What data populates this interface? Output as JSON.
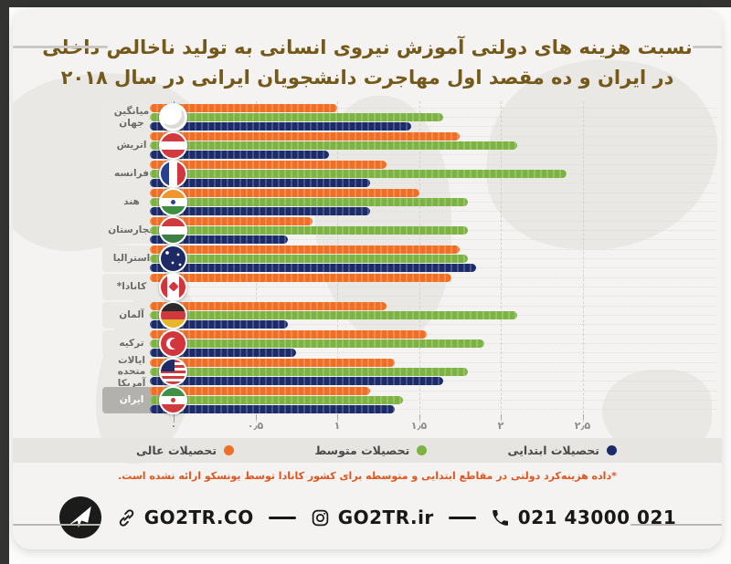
{
  "title": {
    "line1": "نسبت هزینه های دولتی آموزش نیروی انسانی به تولید ناخالص داخلی",
    "line2": "در ایران و ده مقصد اول مهاجرت دانشجویان ایرانی در سال ۲۰۱۸",
    "color": "#75591a"
  },
  "chart_data": {
    "type": "bar",
    "orientation": "horizontal",
    "xlim": [
      0,
      2.5
    ],
    "grid": "dashed-vertical",
    "legend_position": "bottom",
    "x_ticks": {
      "labels": [
        "۰",
        "۰٫۵",
        "۱",
        "۱٫۵",
        "۲",
        "۲٫۵"
      ],
      "values": [
        0,
        0.5,
        1,
        1.5,
        2,
        2.5
      ]
    },
    "series_meta": [
      {
        "key": "higher",
        "label": "تحصیلات عالی",
        "color": "#f06f24"
      },
      {
        "key": "secondary",
        "label": "تحصیلات متوسط",
        "color": "#7cb342"
      },
      {
        "key": "primary",
        "label": "تحصیلات ابتدایی",
        "color": "#1c2b6a"
      }
    ],
    "bar_order": [
      "higher",
      "secondary",
      "primary"
    ],
    "legend_order": [
      "primary",
      "secondary",
      "higher"
    ],
    "categories": [
      {
        "key": "world-average",
        "label": "میانگین جهان",
        "highlight": false,
        "values": {
          "higher": 1.0,
          "secondary": 1.65,
          "primary": 1.45
        }
      },
      {
        "key": "austria",
        "label": "اتریش",
        "highlight": false,
        "values": {
          "higher": 1.75,
          "secondary": 2.1,
          "primary": 0.95
        }
      },
      {
        "key": "france",
        "label": "فرانسه",
        "highlight": false,
        "values": {
          "higher": 1.3,
          "secondary": 2.4,
          "primary": 1.2
        }
      },
      {
        "key": "india",
        "label": "هند",
        "highlight": false,
        "values": {
          "higher": 1.5,
          "secondary": 1.8,
          "primary": 1.2
        }
      },
      {
        "key": "hungary",
        "label": "مجارستان",
        "highlight": false,
        "values": {
          "higher": 0.85,
          "secondary": 1.8,
          "primary": 0.7
        }
      },
      {
        "key": "australia",
        "label": "استرالیا",
        "highlight": false,
        "values": {
          "higher": 1.75,
          "secondary": 1.8,
          "primary": 1.85
        }
      },
      {
        "key": "canada",
        "label": "کانادا*",
        "highlight": false,
        "values": {
          "higher": 1.7,
          "secondary": null,
          "primary": null
        }
      },
      {
        "key": "germany",
        "label": "آلمان",
        "highlight": false,
        "values": {
          "higher": 1.3,
          "secondary": 2.1,
          "primary": 0.7
        }
      },
      {
        "key": "turkey",
        "label": "ترکیه",
        "highlight": false,
        "values": {
          "higher": 1.55,
          "secondary": 1.9,
          "primary": 0.75
        }
      },
      {
        "key": "usa",
        "label": "ایالات متحده آمریکا",
        "highlight": false,
        "values": {
          "higher": 1.35,
          "secondary": 1.8,
          "primary": 1.65
        }
      },
      {
        "key": "iran",
        "label": "ایران",
        "highlight": true,
        "values": {
          "higher": 1.2,
          "secondary": 1.4,
          "primary": 1.35
        }
      }
    ]
  },
  "footnote": {
    "text": "*داده هزینه‌کرد دولتی در مقاطع ابتدایی و متوسطه برای کشور کانادا توسط یونسکو ارائه نشده است.",
    "color": "#e0551f"
  },
  "footer": {
    "website": "GO2TR.CO",
    "instagram": "GO2TR.ir",
    "phone": "021 43000 021",
    "icons": [
      "go2tr-logo",
      "link-icon",
      "instagram-icon",
      "phone-icon"
    ]
  }
}
